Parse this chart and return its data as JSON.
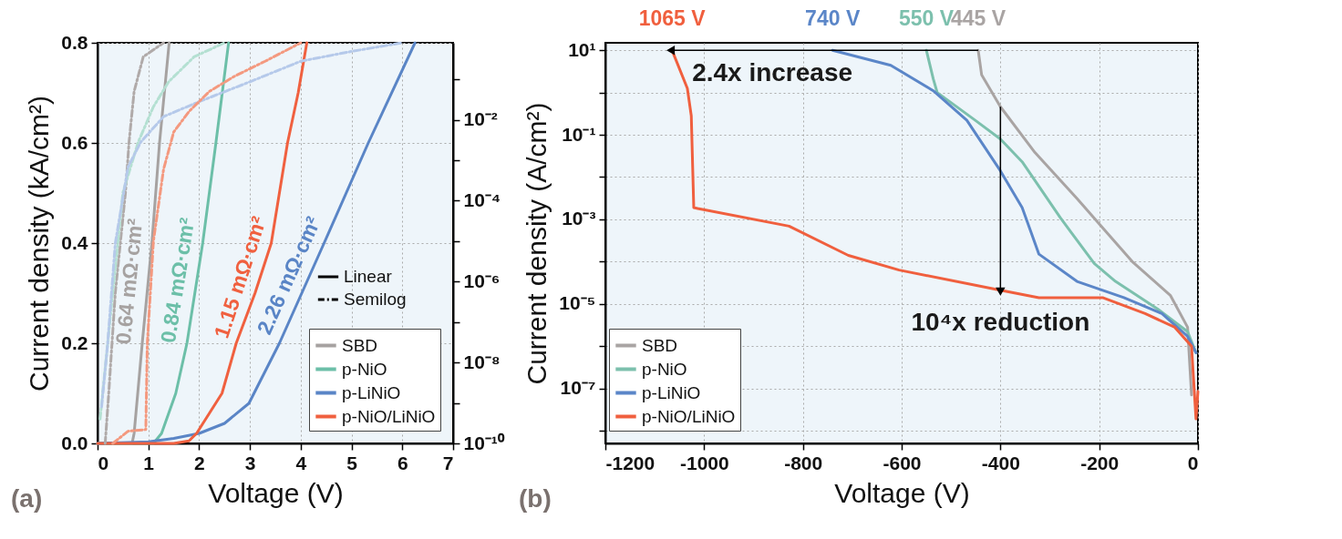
{
  "chart_data": [
    {
      "type": "line",
      "xlabel": "Voltage (V)",
      "ylabel": "Current density (kA/cm²)",
      "xlim": [
        0,
        7
      ],
      "xticks": [
        0,
        1,
        2,
        3,
        4,
        5,
        6,
        7
      ],
      "ylim": [
        0,
        0.8
      ],
      "yticks": [
        {
          "value": 0,
          "label": "0.0"
        },
        {
          "value": 0.2,
          "label": "0.2"
        },
        {
          "value": 0.4,
          "label": "0.4"
        },
        {
          "value": 0.6,
          "label": "0.6"
        },
        {
          "value": 0.8,
          "label": "0.8"
        }
      ],
      "y2lim": [
        1e-10,
        0.8
      ],
      "y2ticks": [
        {
          "value": 0.1,
          "label": null
        },
        {
          "value": 0.01,
          "label": "10⁻²"
        },
        {
          "value": 0.001,
          "label": null
        },
        {
          "value": 0.0001,
          "label": "10⁻⁴"
        },
        {
          "value": 1e-05,
          "label": null
        },
        {
          "value": 1e-06,
          "label": "10⁻⁶"
        },
        {
          "value": 1e-07,
          "label": null
        },
        {
          "value": 1e-08,
          "label": "10⁻⁸"
        },
        {
          "value": 1e-09,
          "label": null
        },
        {
          "value": 1e-10,
          "label": "10⁻¹⁰"
        }
      ],
      "log": "y2",
      "grid": true,
      "legend": "bottom right",
      "series": [
        {
          "name": "SBD",
          "color": "#a6a2a1",
          "line_style": "solid",
          "x": [
            0,
            0.68,
            0.72,
            0.88,
            1.07,
            1.22,
            1.41
          ],
          "values": [
            0,
            0,
            0.02,
            0.2,
            0.4,
            0.6,
            0.8
          ]
        },
        {
          "name": "p-NiO",
          "color": "#6cbfa8",
          "line_style": "solid",
          "x": [
            0,
            1.1,
            1.26,
            1.54,
            1.76,
            2.07,
            2.33,
            2.58
          ],
          "values": [
            0,
            0,
            0.02,
            0.1,
            0.2,
            0.4,
            0.6,
            0.8
          ]
        },
        {
          "name": "p-LiNiO",
          "color": "#5a85c6",
          "line_style": "solid",
          "x": [
            0,
            1,
            1.5,
            2,
            2.5,
            2.98,
            3.58,
            4.46,
            5.33,
            6.25
          ],
          "values": [
            0,
            0.003,
            0.01,
            0.02,
            0.04,
            0.08,
            0.2,
            0.4,
            0.6,
            0.8
          ]
        },
        {
          "name": "p-NiO/LiNiO",
          "color": "#f0603f",
          "line_style": "solid",
          "x": [
            0,
            1.5,
            1.8,
            1.95,
            2.2,
            2.45,
            2.73,
            3.1,
            3.42,
            3.74,
            3.95,
            4.12
          ],
          "values": [
            0,
            0,
            0.005,
            0.02,
            0.06,
            0.1,
            0.2,
            0.3,
            0.4,
            0.6,
            0.7,
            0.8
          ]
        },
        {
          "color": "#b0aaa9",
          "line_style": "dashed",
          "axis": "y2",
          "x": [
            0.15,
            0.22,
            0.35,
            0.55,
            0.62,
            0.72,
            0.9,
            1.3
          ],
          "values": [
            1e-10,
            1.7e-09,
            5.4e-07,
            0.00016,
            0.0028,
            0.05,
            0.36,
            0.8
          ]
        },
        {
          "color": "#b4e0d2",
          "line_style": "dashed",
          "axis": "y2",
          "x": [
            0.05,
            0.1,
            0.3,
            0.5,
            0.8,
            1.1,
            1.4,
            1.9,
            2.5
          ],
          "values": [
            4e-10,
            1.7e-09,
            5.4e-07,
            0.00016,
            0.0028,
            0.021,
            0.087,
            0.36,
            0.8
          ]
        },
        {
          "color": "#b5c9ea",
          "line_style": "dashed",
          "axis": "y2",
          "x": [
            0.08,
            0.2,
            0.35,
            0.6,
            0.85,
            1.3,
            2.0,
            3.0,
            4.0,
            5.0,
            6.0
          ],
          "values": [
            8e-10,
            3e-08,
            9e-06,
            0.00068,
            0.0028,
            0.012,
            0.028,
            0.087,
            0.28,
            0.49,
            0.8
          ]
        },
        {
          "color": "#f4997f",
          "line_style": "dashed",
          "axis": "y2",
          "x": [
            0.3,
            0.6,
            0.95,
            0.98,
            1.1,
            1.3,
            1.5,
            1.8,
            2.2,
            2.7,
            3.3,
            4.0
          ],
          "values": [
            1e-10,
            2e-10,
            2.2e-10,
            3e-08,
            1e-05,
            0.0006,
            0.005,
            0.016,
            0.05,
            0.12,
            0.28,
            0.8
          ]
        }
      ],
      "annotations": [
        "Linear",
        "Semilog",
        "0.64 mΩ·cm²",
        "0.84 mΩ·cm²",
        "2.26 mΩ·cm²",
        "1.15 mΩ·cm²",
        "(a)"
      ]
    },
    {
      "type": "line",
      "xlabel": "Voltage (V)",
      "ylabel": "Current density (A/cm²)",
      "xlim": [
        -1200,
        0
      ],
      "xticks": [
        -1200,
        -1000,
        -800,
        -600,
        -400,
        -200,
        0
      ],
      "ylim": [
        5e-09,
        15
      ],
      "yticks": [
        {
          "value": 10,
          "label": "10¹"
        },
        {
          "value": 1,
          "label": null
        },
        {
          "value": 0.1,
          "label": "10⁻¹"
        },
        {
          "value": 0.01,
          "label": null
        },
        {
          "value": 0.001,
          "label": "10⁻³"
        },
        {
          "value": 0.0001,
          "label": null
        },
        {
          "value": 1e-05,
          "label": "10⁻⁵"
        },
        {
          "value": 1e-06,
          "label": null
        },
        {
          "value": 1e-07,
          "label": "10⁻⁷"
        },
        {
          "value": 1e-08,
          "label": null
        }
      ],
      "log": true,
      "grid": true,
      "legend": "bottom left",
      "series": [
        {
          "name": "SBD",
          "color": "#a9a4a3",
          "x": [
            -445,
            -438,
            -400,
            -330,
            -245,
            -133,
            -56,
            -21,
            -13
          ],
          "values": [
            10,
            2.6,
            0.46,
            0.038,
            0.0031,
            0.0001,
            1.6e-05,
            2.8e-06,
            7e-08
          ]
        },
        {
          "name": "p-NiO",
          "color": "#7cc0ad",
          "x": [
            -550,
            -536,
            -528,
            -451,
            -400,
            -356,
            -279,
            -210,
            -167,
            -82,
            -21,
            -4
          ],
          "values": [
            10,
            2.1,
            1.0,
            0.22,
            0.079,
            0.023,
            0.0011,
            9e-05,
            3.4e-05,
            7.6e-06,
            2.2e-06,
            7e-07
          ]
        },
        {
          "name": "p-LiNiO",
          "color": "#5b86c8",
          "x": [
            -740,
            -622,
            -536,
            -468,
            -400,
            -356,
            -322,
            -245,
            -150,
            -73,
            -21,
            -4
          ],
          "values": [
            10,
            4.4,
            1.1,
            0.22,
            0.014,
            0.0019,
            0.00015,
            3.4e-05,
            1.4e-05,
            5.9e-06,
            1.7e-06,
            7e-07
          ]
        },
        {
          "name": "p-NiO/LiNiO",
          "color": "#f05f3e",
          "x": [
            -1065,
            -1034,
            -1026,
            -1021,
            -1013,
            -828,
            -708,
            -605,
            -400,
            -322,
            -193,
            -107,
            -47,
            -13,
            -4,
            0
          ],
          "values": [
            10,
            1.26,
            0.28,
            0.0019,
            0.0018,
            0.00069,
            0.00014,
            6.3e-05,
            2.1e-05,
            1.4e-05,
            1.4e-05,
            5.9e-06,
            2.8e-06,
            1e-06,
            1.9e-08,
            8.5e-08
          ]
        }
      ],
      "annotations": [
        "445 V",
        "550 V",
        "740 V",
        "1065 V",
        {
          "text": "2.4x increase",
          "x": -1065,
          "y": 10
        },
        {
          "text": "10⁴x reduction",
          "x": -400,
          "y": 2.1e-05
        },
        "(b)"
      ]
    }
  ]
}
